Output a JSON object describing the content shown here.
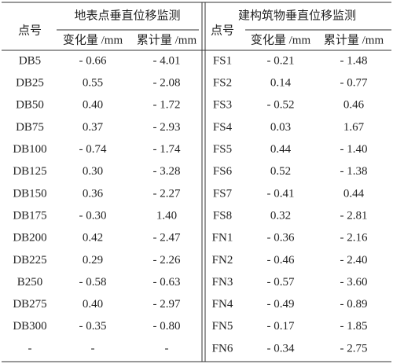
{
  "table": {
    "left": {
      "point_header": "点号",
      "group_header": "地表点垂直位移监测",
      "subheaders": [
        "变化量 /mm",
        "累计量 /mm"
      ]
    },
    "right": {
      "point_header": "点号",
      "group_header": "建构筑物垂直位移监测",
      "subheaders": [
        "变化量 /mm",
        "累计量 /mm"
      ]
    },
    "rows": [
      [
        "DB5",
        "- 0.66",
        "- 4.01",
        "FS1",
        "- 0.21",
        "- 1.48"
      ],
      [
        "DB25",
        "0.55",
        "- 2.08",
        "FS2",
        "0.14",
        "- 0.77"
      ],
      [
        "DB50",
        "0.40",
        "- 1.72",
        "FS3",
        "- 0.52",
        "0.46"
      ],
      [
        "DB75",
        "0.37",
        "- 2.93",
        "FS4",
        "0.03",
        "1.67"
      ],
      [
        "DB100",
        "- 0.74",
        "- 1.74",
        "FS5",
        "0.44",
        "- 1.40"
      ],
      [
        "DB125",
        "0.30",
        "- 3.28",
        "FS6",
        "0.52",
        "- 1.38"
      ],
      [
        "DB150",
        "0.36",
        "- 2.27",
        "FS7",
        "- 0.41",
        "0.44"
      ],
      [
        "DB175",
        "- 0.30",
        "1.40",
        "FS8",
        "0.32",
        "- 2.81"
      ],
      [
        "DB200",
        "0.42",
        "- 2.47",
        "FN1",
        "- 0.36",
        "- 2.16"
      ],
      [
        "DB225",
        "0.29",
        "- 2.26",
        "FN2",
        "- 0.46",
        "- 2.40"
      ],
      [
        "B250",
        "- 0.58",
        "- 0.63",
        "FN3",
        "- 0.57",
        "- 3.60"
      ],
      [
        "DB275",
        "0.40",
        "- 2.97",
        "FN4",
        "- 0.49",
        "- 0.89"
      ],
      [
        "DB300",
        "- 0.35",
        "- 0.80",
        "FN5",
        "- 0.17",
        "- 1.85"
      ],
      [
        "-",
        "-",
        "-",
        "FN6",
        "- 0.34",
        "- 2.75"
      ]
    ]
  }
}
